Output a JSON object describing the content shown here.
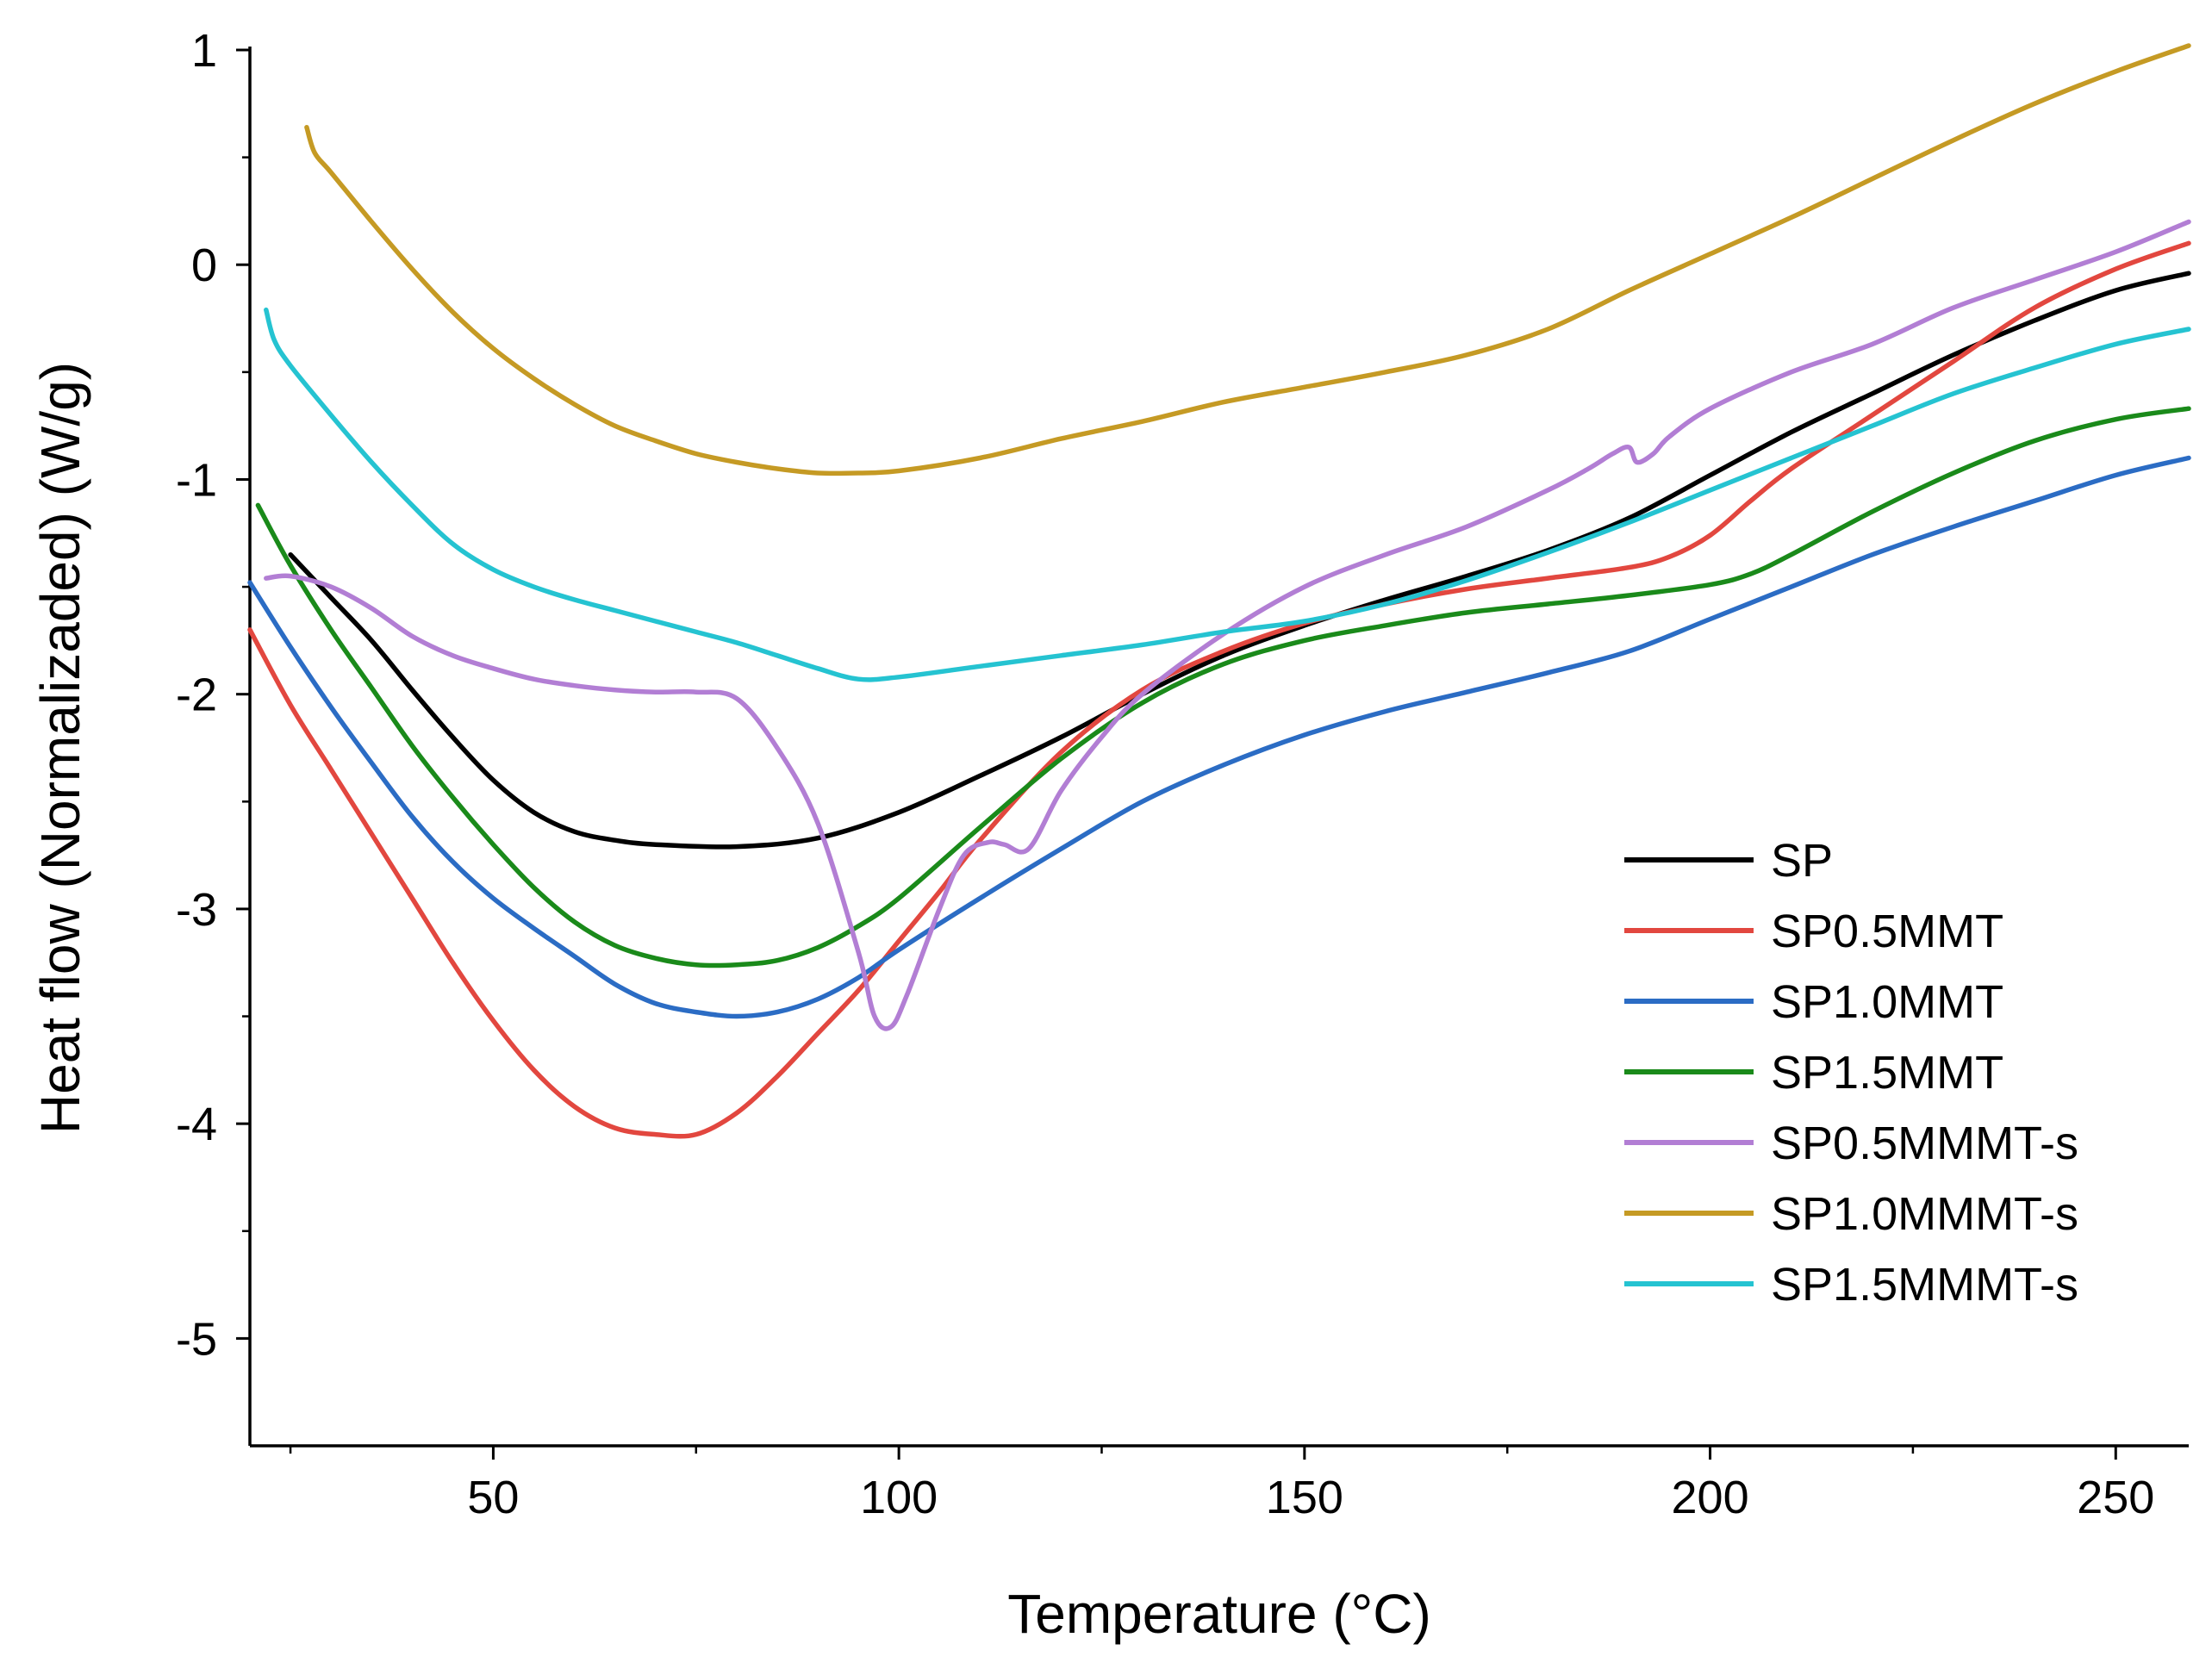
{
  "chart_data": {
    "type": "line",
    "title": "",
    "xlabel": "Temperature (°C)",
    "ylabel": "Heat flow (Normalizaded) (W/g)",
    "xlim": [
      20,
      259
    ],
    "ylim": [
      -5.5,
      1
    ],
    "x_ticks": [
      50,
      100,
      150,
      200,
      250
    ],
    "x_tick_labels": [
      "50",
      "100",
      "150",
      "200",
      "250"
    ],
    "y_ticks": [
      1,
      0,
      -1,
      -2,
      -3,
      -4,
      -5
    ],
    "y_tick_labels": [
      "1",
      "0",
      "-1",
      "-2",
      "-3",
      "-4",
      "-5"
    ],
    "grid": false,
    "legend_position": "bottom-right",
    "series": [
      {
        "name": "SP",
        "color": "#000000",
        "points": [
          [
            25,
            -1.35
          ],
          [
            30,
            -1.55
          ],
          [
            35,
            -1.75
          ],
          [
            40,
            -1.98
          ],
          [
            45,
            -2.2
          ],
          [
            50,
            -2.4
          ],
          [
            55,
            -2.55
          ],
          [
            60,
            -2.64
          ],
          [
            65,
            -2.68
          ],
          [
            70,
            -2.7
          ],
          [
            80,
            -2.71
          ],
          [
            90,
            -2.67
          ],
          [
            100,
            -2.55
          ],
          [
            110,
            -2.38
          ],
          [
            120,
            -2.2
          ],
          [
            130,
            -2.0
          ],
          [
            140,
            -1.82
          ],
          [
            150,
            -1.68
          ],
          [
            160,
            -1.56
          ],
          [
            170,
            -1.45
          ],
          [
            180,
            -1.33
          ],
          [
            190,
            -1.18
          ],
          [
            200,
            -0.98
          ],
          [
            210,
            -0.78
          ],
          [
            220,
            -0.6
          ],
          [
            230,
            -0.42
          ],
          [
            240,
            -0.26
          ],
          [
            250,
            -0.12
          ],
          [
            259,
            -0.04
          ]
        ]
      },
      {
        "name": "SP0.5MMT",
        "color": "#e2473f",
        "points": [
          [
            20,
            -1.7
          ],
          [
            25,
            -2.05
          ],
          [
            30,
            -2.35
          ],
          [
            35,
            -2.65
          ],
          [
            40,
            -2.95
          ],
          [
            45,
            -3.25
          ],
          [
            50,
            -3.52
          ],
          [
            55,
            -3.75
          ],
          [
            60,
            -3.92
          ],
          [
            65,
            -4.02
          ],
          [
            70,
            -4.05
          ],
          [
            75,
            -4.05
          ],
          [
            80,
            -3.95
          ],
          [
            85,
            -3.78
          ],
          [
            90,
            -3.58
          ],
          [
            95,
            -3.38
          ],
          [
            100,
            -3.15
          ],
          [
            105,
            -2.92
          ],
          [
            110,
            -2.68
          ],
          [
            120,
            -2.27
          ],
          [
            130,
            -1.98
          ],
          [
            140,
            -1.8
          ],
          [
            150,
            -1.67
          ],
          [
            160,
            -1.58
          ],
          [
            170,
            -1.51
          ],
          [
            180,
            -1.46
          ],
          [
            190,
            -1.41
          ],
          [
            195,
            -1.36
          ],
          [
            200,
            -1.26
          ],
          [
            205,
            -1.1
          ],
          [
            210,
            -0.95
          ],
          [
            220,
            -0.7
          ],
          [
            230,
            -0.45
          ],
          [
            240,
            -0.2
          ],
          [
            250,
            -0.02
          ],
          [
            259,
            0.1
          ]
        ]
      },
      {
        "name": "SP1.0MMT",
        "color": "#2b6cc4",
        "points": [
          [
            20,
            -1.48
          ],
          [
            25,
            -1.78
          ],
          [
            30,
            -2.06
          ],
          [
            35,
            -2.32
          ],
          [
            40,
            -2.57
          ],
          [
            45,
            -2.78
          ],
          [
            50,
            -2.95
          ],
          [
            55,
            -3.09
          ],
          [
            60,
            -3.22
          ],
          [
            65,
            -3.35
          ],
          [
            70,
            -3.44
          ],
          [
            75,
            -3.48
          ],
          [
            80,
            -3.5
          ],
          [
            85,
            -3.48
          ],
          [
            90,
            -3.42
          ],
          [
            95,
            -3.32
          ],
          [
            100,
            -3.19
          ],
          [
            110,
            -2.95
          ],
          [
            120,
            -2.72
          ],
          [
            130,
            -2.5
          ],
          [
            140,
            -2.33
          ],
          [
            150,
            -2.19
          ],
          [
            160,
            -2.08
          ],
          [
            170,
            -1.99
          ],
          [
            180,
            -1.9
          ],
          [
            190,
            -1.8
          ],
          [
            200,
            -1.65
          ],
          [
            210,
            -1.5
          ],
          [
            220,
            -1.35
          ],
          [
            230,
            -1.22
          ],
          [
            240,
            -1.1
          ],
          [
            250,
            -0.98
          ],
          [
            259,
            -0.9
          ]
        ]
      },
      {
        "name": "SP1.5MMT",
        "color": "#1a8a1a",
        "points": [
          [
            21,
            -1.12
          ],
          [
            25,
            -1.4
          ],
          [
            30,
            -1.7
          ],
          [
            35,
            -1.97
          ],
          [
            40,
            -2.24
          ],
          [
            45,
            -2.48
          ],
          [
            50,
            -2.7
          ],
          [
            55,
            -2.9
          ],
          [
            60,
            -3.06
          ],
          [
            65,
            -3.17
          ],
          [
            70,
            -3.23
          ],
          [
            75,
            -3.26
          ],
          [
            80,
            -3.26
          ],
          [
            85,
            -3.24
          ],
          [
            90,
            -3.18
          ],
          [
            95,
            -3.08
          ],
          [
            100,
            -2.95
          ],
          [
            110,
            -2.62
          ],
          [
            120,
            -2.3
          ],
          [
            130,
            -2.04
          ],
          [
            140,
            -1.86
          ],
          [
            150,
            -1.75
          ],
          [
            160,
            -1.68
          ],
          [
            170,
            -1.62
          ],
          [
            180,
            -1.58
          ],
          [
            190,
            -1.54
          ],
          [
            200,
            -1.49
          ],
          [
            205,
            -1.44
          ],
          [
            210,
            -1.35
          ],
          [
            220,
            -1.15
          ],
          [
            230,
            -0.97
          ],
          [
            240,
            -0.82
          ],
          [
            250,
            -0.72
          ],
          [
            259,
            -0.67
          ]
        ]
      },
      {
        "name": "SP0.5MMMT-s",
        "color": "#b27ed4",
        "points": [
          [
            22,
            -1.46
          ],
          [
            25,
            -1.45
          ],
          [
            30,
            -1.5
          ],
          [
            35,
            -1.6
          ],
          [
            40,
            -1.73
          ],
          [
            45,
            -1.82
          ],
          [
            50,
            -1.88
          ],
          [
            55,
            -1.93
          ],
          [
            60,
            -1.96
          ],
          [
            65,
            -1.98
          ],
          [
            70,
            -1.99
          ],
          [
            75,
            -1.99
          ],
          [
            80,
            -2.02
          ],
          [
            85,
            -2.25
          ],
          [
            90,
            -2.6
          ],
          [
            95,
            -3.2
          ],
          [
            97,
            -3.5
          ],
          [
            99,
            -3.55
          ],
          [
            101,
            -3.4
          ],
          [
            105,
            -3.0
          ],
          [
            108,
            -2.75
          ],
          [
            111,
            -2.69
          ],
          [
            113,
            -2.7
          ],
          [
            116,
            -2.72
          ],
          [
            120,
            -2.45
          ],
          [
            125,
            -2.2
          ],
          [
            130,
            -2.0
          ],
          [
            140,
            -1.72
          ],
          [
            150,
            -1.5
          ],
          [
            160,
            -1.35
          ],
          [
            170,
            -1.22
          ],
          [
            180,
            -1.05
          ],
          [
            185,
            -0.95
          ],
          [
            188,
            -0.88
          ],
          [
            190,
            -0.85
          ],
          [
            191,
            -0.92
          ],
          [
            193,
            -0.88
          ],
          [
            195,
            -0.8
          ],
          [
            200,
            -0.67
          ],
          [
            210,
            -0.5
          ],
          [
            220,
            -0.37
          ],
          [
            230,
            -0.2
          ],
          [
            240,
            -0.07
          ],
          [
            250,
            0.06
          ],
          [
            259,
            0.2
          ]
        ]
      },
      {
        "name": "SP1.0MMMT-s",
        "color": "#c59a24",
        "points": [
          [
            27,
            0.64
          ],
          [
            28,
            0.52
          ],
          [
            30,
            0.43
          ],
          [
            35,
            0.2
          ],
          [
            40,
            -0.02
          ],
          [
            45,
            -0.22
          ],
          [
            50,
            -0.39
          ],
          [
            55,
            -0.53
          ],
          [
            60,
            -0.65
          ],
          [
            65,
            -0.75
          ],
          [
            70,
            -0.82
          ],
          [
            75,
            -0.88
          ],
          [
            80,
            -0.92
          ],
          [
            85,
            -0.95
          ],
          [
            90,
            -0.97
          ],
          [
            95,
            -0.97
          ],
          [
            100,
            -0.96
          ],
          [
            110,
            -0.9
          ],
          [
            120,
            -0.81
          ],
          [
            130,
            -0.73
          ],
          [
            140,
            -0.64
          ],
          [
            150,
            -0.57
          ],
          [
            160,
            -0.5
          ],
          [
            170,
            -0.42
          ],
          [
            180,
            -0.3
          ],
          [
            190,
            -0.12
          ],
          [
            200,
            0.05
          ],
          [
            210,
            0.22
          ],
          [
            220,
            0.4
          ],
          [
            230,
            0.58
          ],
          [
            240,
            0.75
          ],
          [
            250,
            0.9
          ],
          [
            259,
            1.02
          ]
        ]
      },
      {
        "name": "SP1.5MMMT-s",
        "color": "#25c3d1",
        "points": [
          [
            22,
            -0.21
          ],
          [
            23,
            -0.35
          ],
          [
            25,
            -0.47
          ],
          [
            30,
            -0.7
          ],
          [
            35,
            -0.92
          ],
          [
            40,
            -1.12
          ],
          [
            45,
            -1.3
          ],
          [
            50,
            -1.42
          ],
          [
            55,
            -1.5
          ],
          [
            60,
            -1.56
          ],
          [
            65,
            -1.61
          ],
          [
            70,
            -1.66
          ],
          [
            75,
            -1.71
          ],
          [
            80,
            -1.76
          ],
          [
            85,
            -1.82
          ],
          [
            90,
            -1.88
          ],
          [
            95,
            -1.93
          ],
          [
            100,
            -1.92
          ],
          [
            110,
            -1.87
          ],
          [
            120,
            -1.82
          ],
          [
            130,
            -1.77
          ],
          [
            140,
            -1.71
          ],
          [
            150,
            -1.66
          ],
          [
            160,
            -1.58
          ],
          [
            170,
            -1.47
          ],
          [
            180,
            -1.34
          ],
          [
            190,
            -1.2
          ],
          [
            200,
            -1.05
          ],
          [
            210,
            -0.9
          ],
          [
            220,
            -0.75
          ],
          [
            230,
            -0.6
          ],
          [
            240,
            -0.48
          ],
          [
            250,
            -0.37
          ],
          [
            259,
            -0.3
          ]
        ]
      }
    ]
  }
}
